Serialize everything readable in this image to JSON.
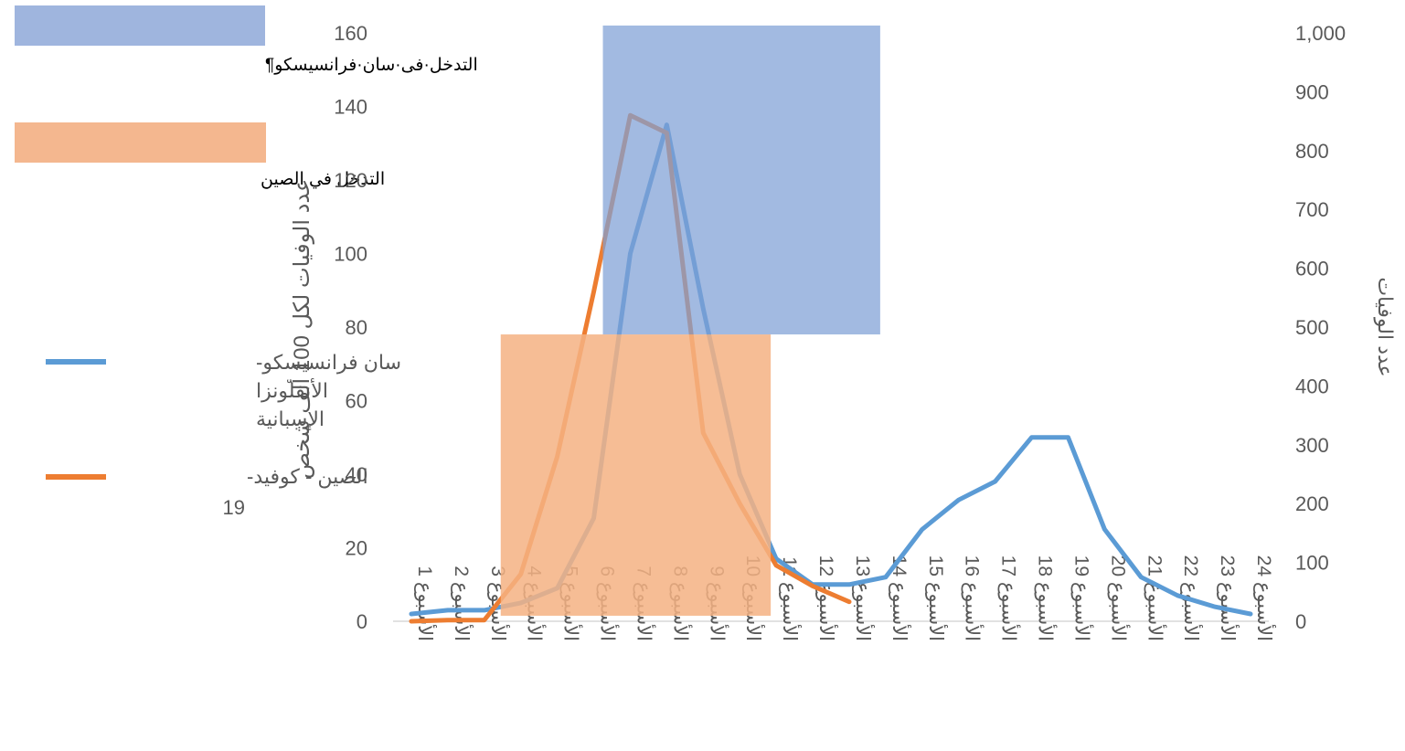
{
  "chart_data": {
    "type": "line",
    "categories": [
      "الأسبوع 1",
      "الأسبوع 2",
      "الأسبوع 3",
      "الأسبوع 4",
      "الأسبوع 5",
      "الأسبوع 6",
      "الأسبوع 7",
      "الأسبوع 8",
      "الأسبوع 9",
      "الأسبوع 10",
      "الأسبوع 11",
      "الأسبوع 12",
      "الأسبوع 13",
      "الأسبوع 14",
      "الأسبوع 15",
      "الأسبوع 16",
      "الأسبوع 17",
      "الأسبوع 18",
      "الأسبوع 19",
      "الأسبوع 20",
      "الأسبوع 21",
      "الأسبوع 22",
      "الأسبوع 23",
      "الأسبوع 24"
    ],
    "y_left": {
      "label": "عدد الوفيات لكل 100 ألف شخص",
      "min": 0,
      "max": 160,
      "ticks": [
        "0",
        "20",
        "40",
        "60",
        "80",
        "100",
        "120",
        "140",
        "160"
      ]
    },
    "y_right": {
      "label": "عدد الوفيات",
      "min": 0,
      "max": 1000,
      "ticks": [
        "0",
        "100",
        "200",
        "300",
        "400",
        "500",
        "600",
        "700",
        "800",
        "900",
        "1,000"
      ]
    },
    "series": [
      {
        "name": "سان فرانسيسكو - الأنفلونزا الإسبانية",
        "axis": "left",
        "color": "#5b9bd5",
        "values": [
          2,
          3,
          3,
          5,
          9,
          28,
          100,
          135,
          85,
          40,
          17,
          10,
          10,
          12,
          25,
          33,
          38,
          50,
          50,
          25,
          12,
          7,
          4,
          2
        ]
      },
      {
        "name": "الصين - كوفيد-19",
        "axis": "right",
        "color": "#ed7d31",
        "values": [
          0,
          2,
          2,
          80,
          280,
          560,
          860,
          830,
          320,
          200,
          95,
          60,
          33,
          null,
          null,
          null,
          null,
          null,
          null,
          null,
          null,
          null,
          null,
          null
        ]
      }
    ],
    "intervention_regions": [
      {
        "name": "التدخل في سان فرانسيسكو",
        "label_text": "التدخل·فى·سان·فرانسيسكو¶",
        "color": "#7e9fd6",
        "opacity": 0.72,
        "x_start_week": 6.25,
        "x_end_week": 13.85,
        "y_bottom": 78,
        "y_top": 162
      },
      {
        "name": "التدخل في الصين",
        "label_text": "التدخل في الصين",
        "color": "#f4b183",
        "opacity": 0.85,
        "x_start_week": 3.45,
        "x_end_week": 10.85,
        "y_bottom": 1.5,
        "y_top": 78
      }
    ],
    "legend": {
      "position": "left",
      "items": [
        {
          "line1": "سان فرانسيسكو-",
          "line2": "الأنفلونزا",
          "line3": "الإسبانية",
          "color": "#5b9bd5"
        },
        {
          "line1": "الصين - كوفيد-",
          "line2": "19",
          "color": "#ed7d31"
        }
      ]
    },
    "grid": false
  }
}
